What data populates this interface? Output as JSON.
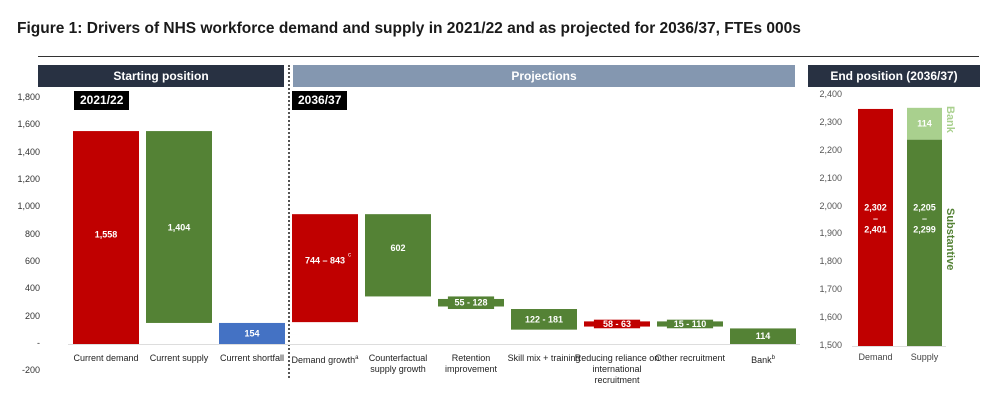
{
  "title": "Figure 1: Drivers of NHS workforce demand and supply in 2021/22 and as projected for 2036/37, FTEs 000s",
  "sections": {
    "starting": "Starting position",
    "projections": "Projections",
    "end": "End position (2036/37)"
  },
  "badges": {
    "start_year": "2021/22",
    "proj_year": "2036/37"
  },
  "colors": {
    "red": "#c00000",
    "green": "#548235",
    "blue": "#4472c4",
    "light_green": "#a9d08e",
    "header_dark": "#283142",
    "header_light": "#8497b0"
  },
  "chart_data": [
    {
      "type": "bar",
      "subtype": "waterfall",
      "title": "Drivers of NHS workforce demand and supply",
      "ylabel": "FTEs 000s",
      "ylim": [
        -200,
        1800
      ],
      "yticks": [
        "1,800",
        "1,600",
        "1,400",
        "1,200",
        "1,000",
        "800",
        "600",
        "400",
        "200",
        "-",
        "-200"
      ],
      "ytick_values": [
        1800,
        1600,
        1400,
        1200,
        1000,
        800,
        600,
        400,
        200,
        0,
        -200
      ],
      "bars": [
        {
          "category": "Current demand",
          "label": "1,558",
          "bottom": 0,
          "top": 1558,
          "color": "red"
        },
        {
          "category": "Current supply",
          "label": "1,404",
          "bottom": 154,
          "top": 1558,
          "color": "green"
        },
        {
          "category": "Current shortfall",
          "label": "154",
          "bottom": 0,
          "top": 154,
          "color": "blue"
        },
        {
          "category": "Demand growth",
          "sup": "a",
          "label": "744 – 843",
          "label_sup": "c",
          "bottom": 160,
          "top": 950,
          "color": "red"
        },
        {
          "category": "Counterfactual supply growth",
          "label": "602",
          "bottom": 348,
          "top": 950,
          "color": "green"
        },
        {
          "category": "Retention improvement",
          "label": "55 - 128",
          "bottom": 256,
          "top": 348,
          "color": "green",
          "range_band": true
        },
        {
          "category": "Skill mix + training",
          "label": "122 - 181",
          "bottom": 105,
          "top": 256,
          "color": "green"
        },
        {
          "category": "Reducing reliance on international recruitment",
          "label": "58 - 63",
          "bottom": 115,
          "top": 178,
          "color": "red",
          "range_band": true
        },
        {
          "category": "Other recruitment",
          "label": "15 - 110",
          "bottom": 115,
          "top": 178,
          "color": "green",
          "range_band": true
        },
        {
          "category": "Bank",
          "sup": "b",
          "label": "114",
          "bottom": 0,
          "top": 114,
          "color": "green"
        }
      ]
    },
    {
      "type": "bar",
      "subtype": "stacked",
      "title": "End position (2036/37)",
      "ylim": [
        1500,
        2400
      ],
      "yticks": [
        "2,400",
        "2,300",
        "2,200",
        "2,100",
        "2,000",
        "1,900",
        "1,800",
        "1,700",
        "1,600",
        "1,500"
      ],
      "ytick_values": [
        2400,
        2300,
        2200,
        2100,
        2000,
        1900,
        1800,
        1700,
        1600,
        1500
      ],
      "categories": [
        "Demand",
        "Supply"
      ],
      "bars": [
        {
          "category": "Demand",
          "label_lines": [
            "2,302",
            "–",
            "2,401"
          ],
          "bottom": 1500,
          "top": 2350,
          "color": "red"
        },
        {
          "category": "Supply",
          "label_lines": [
            "2,205",
            "–",
            "2,299"
          ],
          "bottom": 1500,
          "top": 2240,
          "color": "green",
          "segment": "Substantive"
        },
        {
          "category": "Supply",
          "label": "114",
          "bottom": 2240,
          "top": 2354,
          "color": "light_green",
          "segment": "Bank"
        }
      ],
      "side_labels": {
        "bank": "Bank",
        "substantive": "Substantive"
      }
    }
  ]
}
